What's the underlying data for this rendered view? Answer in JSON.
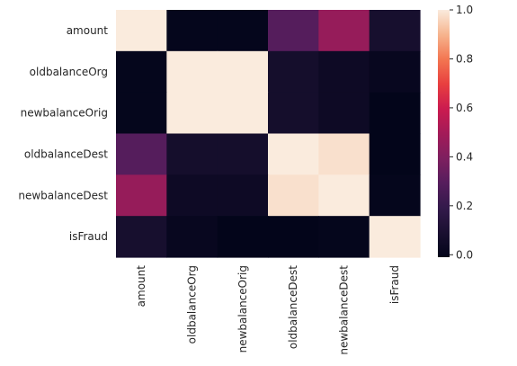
{
  "chart_data": {
    "type": "heatmap",
    "title": "",
    "xlabel": "",
    "ylabel": "",
    "rows": [
      "amount",
      "oldbalanceOrg",
      "newbalanceOrig",
      "oldbalanceDest",
      "newbalanceDest",
      "isFraud"
    ],
    "columns": [
      "amount",
      "oldbalanceOrg",
      "newbalanceOrig",
      "oldbalanceDest",
      "newbalanceDest",
      "isFraud"
    ],
    "values": [
      [
        1.0,
        0.0,
        0.0,
        0.29,
        0.46,
        0.08
      ],
      [
        0.0,
        1.0,
        1.0,
        0.07,
        0.04,
        0.01
      ],
      [
        0.0,
        1.0,
        1.0,
        0.07,
        0.04,
        -0.01
      ],
      [
        0.29,
        0.07,
        0.07,
        1.0,
        0.98,
        -0.01
      ],
      [
        0.46,
        0.04,
        0.04,
        0.98,
        1.0,
        0.0
      ],
      [
        0.08,
        0.01,
        -0.01,
        -0.01,
        0.0,
        1.0
      ]
    ],
    "colormap": "rocket",
    "colorbar": {
      "min": -0.01,
      "max": 1.0,
      "ticks": [
        0.0,
        0.2,
        0.4,
        0.6,
        0.8,
        1.0
      ],
      "tick_labels": [
        "0.0",
        "0.2",
        "0.4",
        "0.6",
        "0.8",
        "1.0"
      ]
    },
    "grid": false,
    "legend": "right"
  }
}
